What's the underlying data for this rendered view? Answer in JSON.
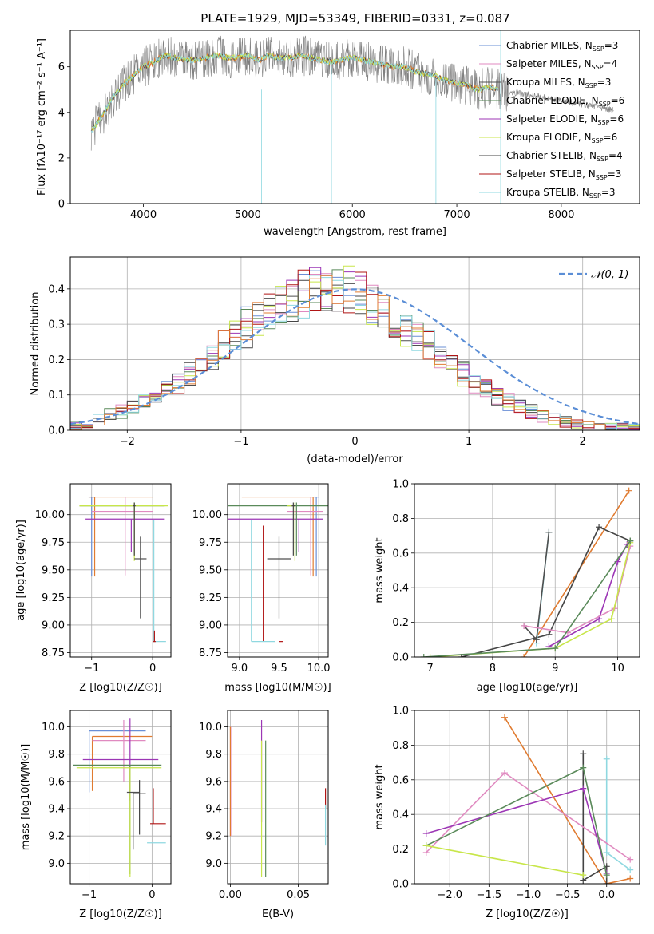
{
  "figure_title": "PLATE=1929, MJD=53349, FIBERID=0331, z=0.087",
  "series_colors": {
    "Chabrier MILES": "#6a8fd6",
    "Salpeter MILES": "#e08ac0",
    "Kroupa MILES": "#4f4f4f",
    "Chabrier ELODIE": "#5a8a5a",
    "Salpeter ELODIE": "#9c36b5",
    "Kroupa ELODIE": "#c8e64a",
    "Chabrier STELIB": "#444444",
    "Salpeter STELIB": "#b01515",
    "Kroupa STELIB": "#8fd8e0",
    "data": "#808080",
    "orange": "#e07b30",
    "normal": "#5b8ed6"
  },
  "chart_data": [
    {
      "id": "spectrum",
      "type": "line",
      "title": "PLATE=1929, MJD=53349, FIBERID=0331, z=0.087",
      "xlabel": "wavelength [Angstrom, rest frame]",
      "ylabel": "Flux [fλ10⁻¹⁷ erg cm⁻² s⁻¹ A⁻¹]",
      "xlim": [
        3300,
        8750
      ],
      "ylim": [
        0,
        7.6
      ],
      "xticks": [
        4000,
        5000,
        6000,
        7000,
        8000
      ],
      "yticks": [
        0,
        2,
        4,
        6
      ],
      "grid": false,
      "legend_position": "upper-right",
      "legend": [
        {
          "name": "Chabrier MILES",
          "nssp": "N_SSP=3",
          "color": "#6a8fd6"
        },
        {
          "name": "Salpeter MILES",
          "nssp": "N_SSP=4",
          "color": "#e08ac0"
        },
        {
          "name": "Kroupa MILES",
          "nssp": "N_SSP=3",
          "color": "#4f4f4f"
        },
        {
          "name": "Chabrier ELODIE",
          "nssp": "N_SSP=6",
          "color": "#5a8a5a"
        },
        {
          "name": "Salpeter ELODIE",
          "nssp": "N_SSP=6",
          "color": "#9c36b5"
        },
        {
          "name": "Kroupa ELODIE",
          "nssp": "N_SSP=6",
          "color": "#c8e64a"
        },
        {
          "name": "Chabrier STELIB",
          "nssp": "N_SSP=4",
          "color": "#444444"
        },
        {
          "name": "Salpeter STELIB",
          "nssp": "N_SSP=3",
          "color": "#b01515"
        },
        {
          "name": "Kroupa STELIB",
          "nssp": "N_SSP=3",
          "color": "#8fd8e0"
        }
      ],
      "model_x": [
        3500,
        3600,
        3700,
        3800,
        3900,
        4000,
        4100,
        4200,
        4300,
        4400,
        4500,
        4600,
        4700,
        4800,
        4900,
        5000,
        5100,
        5200,
        5300,
        5400,
        5500,
        5600,
        5700,
        5800,
        5900,
        6000,
        6100,
        6200,
        6300,
        6400,
        6500,
        6600,
        6700,
        6800,
        6900,
        7000,
        7100,
        7200,
        7300,
        7400
      ],
      "model_y": [
        3.2,
        3.8,
        4.6,
        5.2,
        5.6,
        6.0,
        6.2,
        6.5,
        6.4,
        6.3,
        6.3,
        6.4,
        6.5,
        6.4,
        6.4,
        6.5,
        6.3,
        6.5,
        6.4,
        6.4,
        6.5,
        6.4,
        6.3,
        6.2,
        6.3,
        6.4,
        6.3,
        6.2,
        6.1,
        6.0,
        6.0,
        5.8,
        5.7,
        5.6,
        5.4,
        5.3,
        5.2,
        5.0,
        5.1,
        5.0
      ],
      "data_x_range": [
        3500,
        8500
      ]
    },
    {
      "id": "residuals",
      "type": "histogram",
      "xlabel": "(data-model)/error",
      "ylabel": "Normed distribution",
      "xlim": [
        -2.5,
        2.5
      ],
      "ylim": [
        0,
        0.49
      ],
      "xticks": [
        -2,
        -1,
        0,
        1,
        2
      ],
      "yticks": [
        0.0,
        0.1,
        0.2,
        0.3,
        0.4
      ],
      "grid": true,
      "legend_position": "upper-right",
      "legend": [
        {
          "name": "𝒩(0, 1)",
          "color": "#5b8ed6",
          "style": "dashed"
        }
      ],
      "bin_edges_start": -2.5,
      "bin_width": 0.1,
      "reference_values": [
        0.016,
        0.023,
        0.032,
        0.042,
        0.053,
        0.066,
        0.082,
        0.1,
        0.118,
        0.14,
        0.162,
        0.186,
        0.212,
        0.238,
        0.264,
        0.29,
        0.314,
        0.338,
        0.358,
        0.375,
        0.388,
        0.396,
        0.4,
        0.396,
        0.388,
        0.375,
        0.358,
        0.338,
        0.314,
        0.29,
        0.264,
        0.238,
        0.212,
        0.186,
        0.162,
        0.14,
        0.118,
        0.1,
        0.082,
        0.066,
        0.053,
        0.042,
        0.032,
        0.023,
        0.016,
        0.012,
        0.009,
        0.007,
        0.005,
        0.004
      ]
    },
    {
      "id": "age_vs_Z",
      "type": "errorbar",
      "xlabel": "Z [log10(Z/Z☉)]",
      "ylabel": "age  [log10(age/yr)]",
      "xlim": [
        -1.35,
        0.3
      ],
      "ylim": [
        8.71,
        10.28
      ],
      "xticks": [
        -1,
        0
      ],
      "yticks": [
        8.75,
        9.0,
        9.25,
        9.5,
        9.75,
        10.0
      ],
      "grid": true,
      "points": [
        {
          "color": "#6a8fd6",
          "x": -1.0,
          "y": 10.16,
          "xerr": 0.05,
          "yerr": [
            0.72,
            0.0
          ]
        },
        {
          "color": "#e07b30",
          "x": -0.95,
          "y": 10.16,
          "xerr": [
            0.1,
            0.95
          ],
          "yerr": [
            0.72,
            0.0
          ]
        },
        {
          "color": "#e08ac0",
          "x": -0.45,
          "y": 10.03,
          "xerr": [
            0.55,
            0.45
          ],
          "yerr": [
            0.58,
            0.13
          ]
        },
        {
          "color": "#9c36b5",
          "x": -0.35,
          "y": 9.96,
          "xerr": [
            0.75,
            0.55
          ],
          "yerr": [
            0.3,
            0.0
          ]
        },
        {
          "color": "#5a8a5a",
          "x": -0.3,
          "y": 10.08,
          "xerr": [
            0.9,
            0.5
          ],
          "yerr": [
            0.45,
            0.03
          ]
        },
        {
          "color": "#c8e64a",
          "x": -0.3,
          "y": 10.08,
          "xerr": [
            0.9,
            0.55
          ],
          "yerr": [
            0.5,
            0.03
          ]
        },
        {
          "color": "#444444",
          "x": -0.3,
          "y": 10.08,
          "xerr": 0.02,
          "yerr": [
            0.45,
            0.03
          ]
        },
        {
          "color": "#4f4f4f",
          "x": -0.2,
          "y": 9.6,
          "xerr": 0.1,
          "yerr": [
            0.54,
            0.2
          ]
        },
        {
          "color": "#8fd8e0",
          "x": 0.02,
          "y": 8.85,
          "xerr": [
            0.02,
            0.2
          ],
          "yerr": [
            0.0,
            1.1
          ]
        },
        {
          "color": "#b01515",
          "x": 0.03,
          "y": 8.85,
          "xerr": 0.02,
          "yerr": [
            0.0,
            0.1
          ]
        }
      ]
    },
    {
      "id": "age_vs_mass",
      "type": "errorbar",
      "xlabel": "mass [log10(M/M☉)]",
      "ylabel": "",
      "xlim": [
        8.85,
        10.12
      ],
      "ylim": [
        8.71,
        10.28
      ],
      "xticks": [
        9.0,
        9.5,
        10.0
      ],
      "yticks": [
        8.75,
        9.0,
        9.25,
        9.5,
        9.75,
        10.0
      ],
      "grid": true,
      "points": [
        {
          "color": "#6a8fd6",
          "x": 9.97,
          "y": 10.16,
          "xerr": 0.03,
          "yerr": [
            0.72,
            0.0
          ]
        },
        {
          "color": "#e07b30",
          "x": 9.93,
          "y": 10.16,
          "xerr": [
            0.9,
            0.0
          ],
          "yerr": [
            0.72,
            0.0
          ]
        },
        {
          "color": "#e08ac0",
          "x": 9.9,
          "y": 10.03,
          "xerr": [
            0.3,
            0.15
          ],
          "yerr": [
            0.58,
            0.13
          ]
        },
        {
          "color": "#9c36b5",
          "x": 9.75,
          "y": 9.96,
          "xerr": [
            0.9,
            0.3
          ],
          "yerr": [
            0.3,
            0.0
          ]
        },
        {
          "color": "#5a8a5a",
          "x": 9.72,
          "y": 10.08,
          "xerr": [
            0.9,
            0.4
          ],
          "yerr": [
            0.45,
            0.03
          ]
        },
        {
          "color": "#c8e64a",
          "x": 9.7,
          "y": 10.08,
          "xerr": [
            0.1,
            0.0
          ],
          "yerr": [
            0.5,
            0.03
          ]
        },
        {
          "color": "#444444",
          "x": 9.68,
          "y": 10.08,
          "xerr": 0.02,
          "yerr": [
            0.45,
            0.03
          ]
        },
        {
          "color": "#4f4f4f",
          "x": 9.5,
          "y": 9.6,
          "xerr": 0.15,
          "yerr": [
            0.54,
            0.2
          ]
        },
        {
          "color": "#b01515",
          "x": 9.3,
          "y": 9.6,
          "xerr": 0.0,
          "yerr": [
            0.75,
            0.3
          ]
        },
        {
          "color": "#8fd8e0",
          "x": 9.15,
          "y": 8.85,
          "xerr": [
            0.0,
            0.3
          ],
          "yerr": [
            0.0,
            1.1
          ]
        },
        {
          "color": "#b01515",
          "x": 9.5,
          "y": 8.85,
          "xerr": [
            0.0,
            0.05
          ],
          "yerr": [
            0.0,
            0.0
          ]
        }
      ]
    },
    {
      "id": "massweight_vs_age",
      "type": "line",
      "xlabel": "age  [log10(age/yr)]",
      "ylabel": "mass weight",
      "xlim": [
        6.75,
        10.35
      ],
      "ylim": [
        0.0,
        1.0
      ],
      "xticks": [
        7,
        8,
        9,
        10
      ],
      "yticks": [
        0.0,
        0.2,
        0.4,
        0.6,
        0.8,
        1.0
      ],
      "grid": true,
      "series": [
        {
          "color": "#e07b30",
          "x": [
            8.5,
            10.18
          ],
          "y": [
            0.0,
            0.96
          ]
        },
        {
          "color": "#444444",
          "x": [
            7.5,
            8.9,
            9.7,
            10.2
          ],
          "y": [
            0.0,
            0.13,
            0.75,
            0.67
          ]
        },
        {
          "color": "#8fd8e0",
          "x": [
            8.7,
            8.9
          ],
          "y": [
            0.08,
            0.72
          ]
        },
        {
          "color": "#4f4f4f",
          "x": [
            8.5,
            8.7,
            8.9
          ],
          "y": [
            0.18,
            0.1,
            0.72
          ]
        },
        {
          "color": "#9c36b5",
          "x": [
            8.9,
            9.7,
            10.0,
            10.15
          ],
          "y": [
            0.06,
            0.22,
            0.55,
            0.65
          ]
        },
        {
          "color": "#e08ac0",
          "x": [
            8.5,
            9.2,
            9.95,
            10.2
          ],
          "y": [
            0.18,
            0.14,
            0.28,
            0.64
          ]
        },
        {
          "color": "#c8e64a",
          "x": [
            7.0,
            9.0,
            9.9,
            10.2
          ],
          "y": [
            0.0,
            0.05,
            0.22,
            0.66
          ]
        },
        {
          "color": "#5a8a5a",
          "x": [
            6.9,
            9.0,
            10.2
          ],
          "y": [
            0.0,
            0.05,
            0.67
          ]
        }
      ]
    },
    {
      "id": "mass_vs_Z",
      "type": "errorbar",
      "xlabel": "Z [log10(Z/Z☉)]",
      "ylabel": "mass [log10(M/M☉)]",
      "xlim": [
        -1.3,
        0.3
      ],
      "ylim": [
        8.85,
        10.12
      ],
      "xticks": [
        -1,
        0
      ],
      "yticks": [
        9.0,
        9.2,
        9.4,
        9.6,
        9.8,
        10.0
      ],
      "grid": true,
      "points": [
        {
          "color": "#6a8fd6",
          "x": -1.0,
          "y": 9.97,
          "xerr": [
            0.0,
            0.9
          ],
          "yerr": [
            0.45,
            0.0
          ]
        },
        {
          "color": "#e07b30",
          "x": -0.95,
          "y": 9.93,
          "xerr": [
            0.0,
            0.95
          ],
          "yerr": [
            0.4,
            0.0
          ]
        },
        {
          "color": "#e08ac0",
          "x": -0.45,
          "y": 9.9,
          "xerr": [
            0.5,
            0.35
          ],
          "yerr": [
            0.3,
            0.15
          ]
        },
        {
          "color": "#9c36b5",
          "x": -0.35,
          "y": 9.76,
          "xerr": [
            0.75,
            0.45
          ],
          "yerr": [
            0.3,
            0.3
          ]
        },
        {
          "color": "#5a8a5a",
          "x": -0.35,
          "y": 9.72,
          "xerr": [
            0.9,
            0.5
          ],
          "yerr": [
            0.8,
            0.0
          ]
        },
        {
          "color": "#c8e64a",
          "x": -0.35,
          "y": 9.7,
          "xerr": [
            0.85,
            0.5
          ],
          "yerr": [
            0.8,
            0.0
          ]
        },
        {
          "color": "#4f4f4f",
          "x": -0.3,
          "y": 9.52,
          "xerr": 0.1,
          "yerr": [
            0.42,
            0.0
          ]
        },
        {
          "color": "#444444",
          "x": -0.2,
          "y": 9.51,
          "xerr": 0.1,
          "yerr": [
            0.3,
            0.1
          ]
        },
        {
          "color": "#b01515",
          "x": 0.02,
          "y": 9.29,
          "xerr": [
            0.05,
            0.2
          ],
          "yerr": [
            0.0,
            0.26
          ]
        },
        {
          "color": "#8fd8e0",
          "x": 0.02,
          "y": 9.15,
          "xerr": [
            0.1,
            0.2
          ],
          "yerr": [
            0.0,
            0.0
          ]
        }
      ]
    },
    {
      "id": "mass_vs_EBV",
      "type": "errorbar",
      "xlabel": "E(B-V)",
      "ylabel": "",
      "xlim": [
        -0.002,
        0.072
      ],
      "ylim": [
        8.85,
        10.12
      ],
      "xticks": [
        0.0,
        0.05
      ],
      "yticks": [
        9.0,
        9.2,
        9.4,
        9.6,
        9.8,
        10.0
      ],
      "grid": true,
      "points": [
        {
          "color": "#e07b30",
          "x": 0.0,
          "y": 9.6,
          "xerr": 0,
          "yerr": [
            0.4,
            0.4
          ]
        },
        {
          "color": "#e08ac0",
          "x": 0.001,
          "y": 9.5,
          "xerr": 0,
          "yerr": [
            0.3,
            0.5
          ]
        },
        {
          "color": "#9c36b5",
          "x": 0.023,
          "y": 9.8,
          "xerr": 0,
          "yerr": [
            0.5,
            0.25
          ]
        },
        {
          "color": "#c8e64a",
          "x": 0.023,
          "y": 9.4,
          "xerr": 0,
          "yerr": [
            0.5,
            0.5
          ]
        },
        {
          "color": "#5a8a5a",
          "x": 0.026,
          "y": 9.4,
          "xerr": 0,
          "yerr": [
            0.5,
            0.5
          ]
        },
        {
          "color": "#b01515",
          "x": 0.07,
          "y": 9.5,
          "xerr": 0,
          "yerr": [
            0.1,
            0.05
          ]
        },
        {
          "color": "#8fd8e0",
          "x": 0.07,
          "y": 9.3,
          "xerr": 0,
          "yerr": [
            0.17,
            0.13
          ]
        }
      ]
    },
    {
      "id": "massweight_vs_Z",
      "type": "line",
      "xlabel": "Z [log10(Z/Z☉)]",
      "ylabel": "mass weight",
      "xlim": [
        -2.45,
        0.42
      ],
      "ylim": [
        0.0,
        1.0
      ],
      "xticks": [
        -2.0,
        -1.5,
        -1.0,
        -0.5,
        0.0
      ],
      "yticks": [
        0.0,
        0.2,
        0.4,
        0.6,
        0.8,
        1.0
      ],
      "grid": true,
      "series": [
        {
          "color": "#e07b30",
          "x": [
            -1.3,
            0.0,
            0.3
          ],
          "y": [
            0.96,
            0.0,
            0.03
          ]
        },
        {
          "color": "#444444",
          "x": [
            -0.3,
            -0.3,
            0.0,
            0.0
          ],
          "y": [
            0.75,
            0.02,
            0.1,
            0.0
          ]
        },
        {
          "color": "#8fd8e0",
          "x": [
            0.0,
            0.0,
            0.3
          ],
          "y": [
            0.72,
            0.18,
            0.08
          ]
        },
        {
          "color": "#e08ac0",
          "x": [
            -2.3,
            -1.3,
            0.3
          ],
          "y": [
            0.18,
            0.64,
            0.14
          ]
        },
        {
          "color": "#9c36b5",
          "x": [
            -2.3,
            -0.3,
            0.0
          ],
          "y": [
            0.29,
            0.55,
            0.06
          ]
        },
        {
          "color": "#5a8a5a",
          "x": [
            -2.3,
            -0.3,
            0.0
          ],
          "y": [
            0.22,
            0.67,
            0.05
          ]
        },
        {
          "color": "#c8e64a",
          "x": [
            -2.3,
            -0.3
          ],
          "y": [
            0.22,
            0.05
          ]
        }
      ]
    }
  ]
}
